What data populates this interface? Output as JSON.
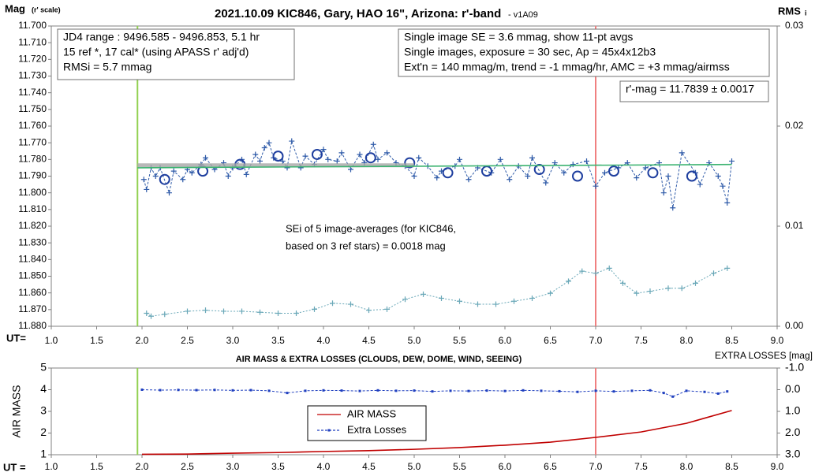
{
  "chart_data": [
    {
      "type": "scatter",
      "title": "2021.10.09 KIC846, Gary, HAO 16\", Arizona: r'-band",
      "subtitle": "- v1A09",
      "ylabel": "Mag",
      "ylabel_note": "(r' scale)",
      "y2label": "RMS",
      "y2label_sub": "i",
      "xlabel": "UT=",
      "xlim": [
        1.0,
        9.0
      ],
      "xticks": [
        {
          "value": 1,
          "label": "1.0"
        },
        1.5,
        {
          "value": 2,
          "label": "2.0"
        },
        2.5,
        {
          "value": 3,
          "label": "3.0"
        },
        3.5,
        {
          "value": 4,
          "label": "4.0"
        },
        4.5,
        {
          "value": 5,
          "label": "5.0"
        },
        5.5,
        {
          "value": 6,
          "label": "6.0"
        },
        6.5,
        {
          "value": 7,
          "label": "7.0"
        },
        7.5,
        {
          "value": 8,
          "label": "8.0"
        },
        8.5,
        {
          "value": 9,
          "label": "9.0"
        }
      ],
      "ylim": [
        11.88,
        11.7
      ],
      "yticks": [
        {
          "value": 11.7,
          "label": "11.700"
        },
        {
          "value": 11.71,
          "label": "11.710"
        },
        {
          "value": 11.72,
          "label": "11.720"
        },
        {
          "value": 11.73,
          "label": "11.730"
        },
        {
          "value": 11.74,
          "label": "11.740"
        },
        {
          "value": 11.75,
          "label": "11.750"
        },
        {
          "value": 11.76,
          "label": "11.760"
        },
        {
          "value": 11.77,
          "label": "11.770"
        },
        {
          "value": 11.78,
          "label": "11.780"
        },
        {
          "value": 11.79,
          "label": "11.790"
        },
        {
          "value": 11.8,
          "label": "11.800"
        },
        {
          "value": 11.81,
          "label": "11.810"
        },
        {
          "value": 11.82,
          "label": "11.820"
        },
        {
          "value": 11.83,
          "label": "11.830"
        },
        {
          "value": 11.84,
          "label": "11.840"
        },
        {
          "value": 11.85,
          "label": "11.850"
        },
        {
          "value": 11.86,
          "label": "11.860"
        },
        {
          "value": 11.87,
          "label": "11.870"
        },
        {
          "value": 11.88,
          "label": "11.880"
        }
      ],
      "y2lim": [
        0,
        0.03
      ],
      "y2ticks": [
        {
          "value": 0,
          "label": "0.00"
        },
        0.01,
        0.02,
        0.03
      ],
      "grid": false,
      "legend": false,
      "vlines": [
        {
          "x": 1.95,
          "color": "#92d050"
        },
        {
          "x": 7.0,
          "color": "#f08080"
        }
      ],
      "series": [
        {
          "name": "Single images",
          "color": "#2e5aa8",
          "marker": "plus",
          "line_style": "dashed",
          "x": [
            2.02,
            2.05,
            2.1,
            2.15,
            2.2,
            2.3,
            2.35,
            2.45,
            2.5,
            2.55,
            2.65,
            2.7,
            2.8,
            2.9,
            2.95,
            3.0,
            3.1,
            3.15,
            3.25,
            3.3,
            3.35,
            3.4,
            3.45,
            3.55,
            3.6,
            3.65,
            3.75,
            3.8,
            3.9,
            4.0,
            4.05,
            4.15,
            4.2,
            4.3,
            4.4,
            4.45,
            4.55,
            4.6,
            4.7,
            4.8,
            4.9,
            5.0,
            5.05,
            5.15,
            5.25,
            5.3,
            5.45,
            5.5,
            5.6,
            5.7,
            5.85,
            5.95,
            6.05,
            6.15,
            6.25,
            6.3,
            6.45,
            6.55,
            6.65,
            6.75,
            6.9,
            7.0,
            7.1,
            7.25,
            7.35,
            7.45,
            7.55,
            7.7,
            7.75,
            7.8,
            7.85,
            7.95,
            8.1,
            8.15,
            8.25,
            8.35,
            8.4,
            8.45,
            8.5
          ],
          "values": [
            11.792,
            11.798,
            11.785,
            11.79,
            11.785,
            11.8,
            11.787,
            11.792,
            11.786,
            11.788,
            11.783,
            11.779,
            11.786,
            11.782,
            11.79,
            11.785,
            11.78,
            11.789,
            11.777,
            11.781,
            11.773,
            11.77,
            11.779,
            11.781,
            11.785,
            11.769,
            11.785,
            11.778,
            11.783,
            11.774,
            11.78,
            11.781,
            11.776,
            11.786,
            11.777,
            11.782,
            11.771,
            11.78,
            11.776,
            11.782,
            11.784,
            11.79,
            11.779,
            11.784,
            11.791,
            11.787,
            11.784,
            11.78,
            11.792,
            11.785,
            11.788,
            11.78,
            11.792,
            11.784,
            11.79,
            11.779,
            11.794,
            11.782,
            11.788,
            11.783,
            11.781,
            11.796,
            11.788,
            11.785,
            11.782,
            11.791,
            11.785,
            11.782,
            11.8,
            11.79,
            11.809,
            11.776,
            11.788,
            11.795,
            11.782,
            11.79,
            11.796,
            11.806,
            11.781
          ]
        },
        {
          "name": "11-pt avgs",
          "color": "#1f3f9f",
          "marker": "circle",
          "line_style": "none",
          "x": [
            2.25,
            2.67,
            3.08,
            3.5,
            3.93,
            4.52,
            4.95,
            5.37,
            5.8,
            6.38,
            6.8,
            7.2,
            7.63,
            8.06
          ],
          "values": [
            11.792,
            11.787,
            11.783,
            11.778,
            11.777,
            11.779,
            11.782,
            11.788,
            11.787,
            11.786,
            11.79,
            11.787,
            11.788,
            11.79
          ]
        },
        {
          "name": "RMSi",
          "color": "#6aa8b8",
          "marker": "plus",
          "line_style": "dotted",
          "axis": "y2",
          "x": [
            2.05,
            2.1,
            2.25,
            2.5,
            2.7,
            2.9,
            3.1,
            3.3,
            3.5,
            3.7,
            3.9,
            4.1,
            4.3,
            4.5,
            4.7,
            4.9,
            5.1,
            5.3,
            5.5,
            5.7,
            5.9,
            6.1,
            6.3,
            6.5,
            6.7,
            6.85,
            7.0,
            7.15,
            7.3,
            7.45,
            7.6,
            7.8,
            7.95,
            8.1,
            8.3,
            8.45
          ],
          "values": [
            0.0013,
            0.001,
            0.0012,
            0.0015,
            0.0016,
            0.0015,
            0.0015,
            0.0014,
            0.0013,
            0.0013,
            0.0017,
            0.0023,
            0.0022,
            0.0016,
            0.0017,
            0.0027,
            0.0032,
            0.0028,
            0.0025,
            0.0022,
            0.0022,
            0.0025,
            0.0028,
            0.0033,
            0.0045,
            0.0055,
            0.0053,
            0.0058,
            0.0043,
            0.0033,
            0.0035,
            0.0038,
            0.0038,
            0.0043,
            0.0053,
            0.0058
          ]
        },
        {
          "name": "Mean",
          "color": "#a6a6a6",
          "marker": "none",
          "line_style": "thick",
          "x": [
            1.95,
            5.0
          ],
          "values": [
            11.7835,
            11.7835
          ]
        },
        {
          "name": "Trend",
          "color": "#3cb371",
          "marker": "none",
          "line_style": "solid",
          "x": [
            1.95,
            8.5
          ],
          "values": [
            11.785,
            11.783
          ]
        }
      ],
      "annotations": [
        {
          "lines": [
            "JD4 range : 9496.585 - 9496.853,  5.1  hr",
            "15 ref *, 17 cal* (using APASS r' adj'd)",
            "RMSi = 5.7 mmag"
          ],
          "border": true
        },
        {
          "lines": [
            "Single image SE = 3.6 mmag, show  11-pt avgs",
            "Single images, exposure = 30 sec, Ap = 45x4x12b3",
            "Ext'n = 140 mmag/m, trend = -1  mmag/hr, AMC = +3 mmag/airmss"
          ],
          "border": true
        },
        {
          "lines": [
            "r'-mag = 11.7839 ± 0.0017"
          ],
          "border": true
        },
        {
          "lines": [
            "SEi of 5 image-averages (for KIC846,",
            "based on 3 ref stars) = 0.0018 mag"
          ],
          "border": false
        }
      ]
    },
    {
      "type": "line",
      "title": "AIR MASS & EXTRA LOSSES (CLOUDS, DEW, DOME, WIND, SEEING)",
      "ylabel": "AIR MASS",
      "y2label": "EXTRA LOSSES [mag]",
      "xlabel": "UT =",
      "xlim": [
        1.0,
        9.0
      ],
      "xticks": [
        {
          "value": 1,
          "label": "1.0"
        },
        1.5,
        {
          "value": 2,
          "label": "2.0"
        },
        2.5,
        {
          "value": 3,
          "label": "3.0"
        },
        3.5,
        {
          "value": 4,
          "label": "4.0"
        },
        4.5,
        {
          "value": 5,
          "label": "5.0"
        },
        5.5,
        {
          "value": 6,
          "label": "6.0"
        },
        6.5,
        {
          "value": 7,
          "label": "7.0"
        },
        7.5,
        {
          "value": 8,
          "label": "8.0"
        },
        8.5,
        {
          "value": 9,
          "label": "9.0"
        }
      ],
      "ylim": [
        1,
        5
      ],
      "yticks": [
        1,
        2,
        3,
        4,
        5
      ],
      "y2lim": [
        3.0,
        -1.0
      ],
      "y2ticks": [
        {
          "value": -1,
          "label": "-1.0"
        },
        {
          "value": 0,
          "label": "0.0"
        },
        {
          "value": 1,
          "label": "1.0"
        },
        {
          "value": 2,
          "label": "2.0"
        },
        {
          "value": 3,
          "label": "3.0"
        }
      ],
      "grid": false,
      "legend": true,
      "vlines": [
        {
          "x": 1.95,
          "color": "#92d050"
        },
        {
          "x": 7.0,
          "color": "#f08080"
        }
      ],
      "series": [
        {
          "name": "AIR MASS",
          "color": "#c00000",
          "marker": "none",
          "line_style": "solid",
          "x": [
            2.0,
            2.5,
            3.0,
            3.5,
            4.0,
            4.5,
            5.0,
            5.5,
            6.0,
            6.5,
            7.0,
            7.5,
            8.0,
            8.5
          ],
          "values": [
            1.02,
            1.03,
            1.07,
            1.1,
            1.15,
            1.19,
            1.25,
            1.33,
            1.44,
            1.58,
            1.8,
            2.05,
            2.45,
            3.04
          ]
        },
        {
          "name": "Extra Losses",
          "color": "#1f3fbf",
          "marker": "dot",
          "line_style": "dashed",
          "axis": "y2",
          "x": [
            2.0,
            2.2,
            2.4,
            2.6,
            2.8,
            3.0,
            3.2,
            3.4,
            3.6,
            3.8,
            4.0,
            4.2,
            4.4,
            4.6,
            4.8,
            5.0,
            5.2,
            5.4,
            5.6,
            5.8,
            6.0,
            6.2,
            6.4,
            6.6,
            6.8,
            7.0,
            7.2,
            7.4,
            7.6,
            7.75,
            7.85,
            8.0,
            8.2,
            8.35,
            8.45
          ],
          "values": [
            0.0,
            0.02,
            0.01,
            0.02,
            0.01,
            0.03,
            0.02,
            0.05,
            0.15,
            0.05,
            0.03,
            0.04,
            0.06,
            0.03,
            0.05,
            0.04,
            0.08,
            0.05,
            0.06,
            0.04,
            0.06,
            0.03,
            0.05,
            0.07,
            0.1,
            0.05,
            0.08,
            0.05,
            0.03,
            0.15,
            0.32,
            0.05,
            0.1,
            0.18,
            0.08
          ]
        }
      ]
    }
  ]
}
